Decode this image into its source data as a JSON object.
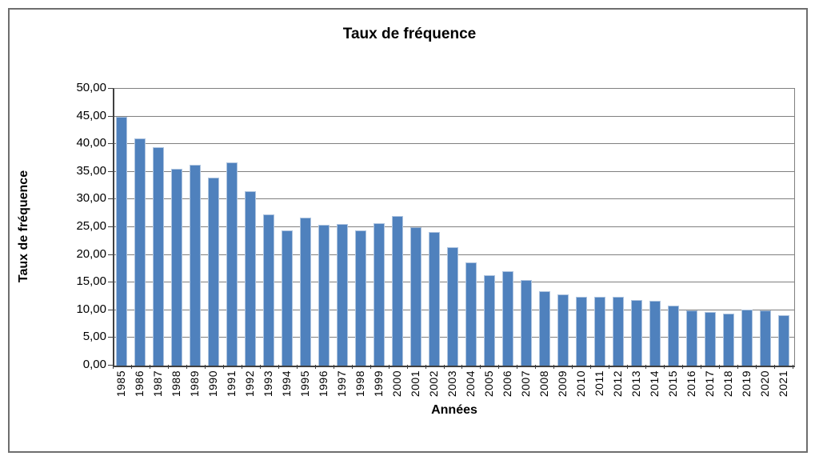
{
  "figure": {
    "title": "Taux de fréquence",
    "x_axis_title": "Années",
    "y_axis_title": "Taux de fréquence"
  },
  "chart_data": {
    "type": "bar",
    "title": "Taux de fréquence",
    "xlabel": "Années",
    "ylabel": "Taux de fréquence",
    "categories": [
      "1985",
      "1986",
      "1987",
      "1988",
      "1989",
      "1990",
      "1991",
      "1992",
      "1993",
      "1994",
      "1995",
      "1996",
      "1997",
      "1998",
      "1999",
      "2000",
      "2001",
      "2002",
      "2003",
      "2004",
      "2005",
      "2006",
      "2007",
      "2008",
      "2009",
      "2010",
      "2011",
      "2012",
      "2013",
      "2014",
      "2015",
      "2016",
      "2017",
      "2018",
      "2019",
      "2020",
      "2021"
    ],
    "values": [
      45.0,
      41.0,
      39.4,
      35.6,
      36.3,
      34.0,
      36.7,
      31.5,
      27.3,
      24.4,
      26.8,
      25.4,
      25.6,
      24.4,
      25.7,
      27.0,
      25.0,
      24.1,
      21.4,
      18.7,
      16.4,
      17.0,
      15.5,
      13.4,
      12.8,
      12.5,
      12.4,
      12.5,
      11.9,
      11.7,
      10.9,
      10.0,
      9.7,
      9.4,
      10.1,
      10.0,
      9.1
    ],
    "ylim": [
      0,
      50
    ],
    "y_tick_step": 5,
    "y_tick_labels": [
      "0,00",
      "5,00",
      "10,00",
      "15,00",
      "20,00",
      "25,00",
      "30,00",
      "35,00",
      "40,00",
      "45,00",
      "50,00"
    ],
    "grid": true,
    "legend_position": "none",
    "bar_color": "#4f81bd",
    "bar_border_color": "#aec4df",
    "gridline_color": "#808080",
    "axis_color": "#404040",
    "plot_border_color": "#808080",
    "frame_border_color": "#6e6e6e"
  }
}
